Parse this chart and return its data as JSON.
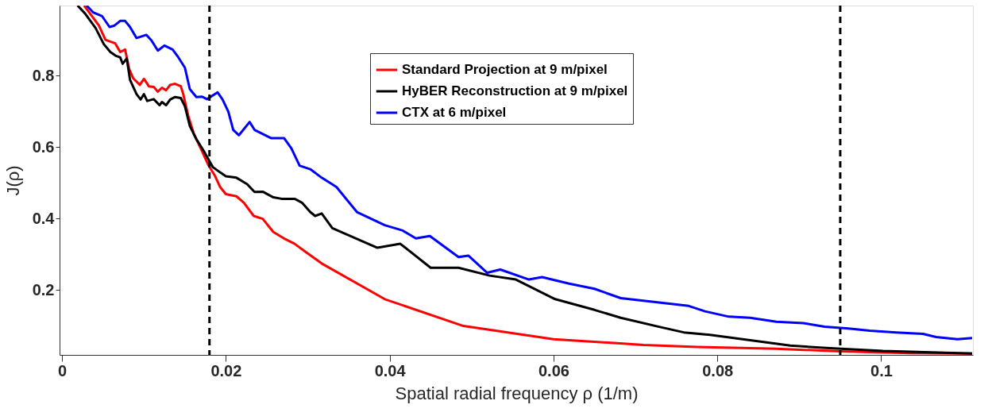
{
  "chart_data": {
    "type": "line",
    "xlabel": "Spatial radial frequency  ρ (1/m)",
    "ylabel": "J(ρ)",
    "xlim": [
      -0.0003,
      0.1112
    ],
    "ylim": [
      0.018,
      0.996
    ],
    "xticks": [
      0,
      0.02,
      0.04,
      0.06,
      0.08,
      0.1
    ],
    "yticks": [
      0.2,
      0.4,
      0.6,
      0.8
    ],
    "grid": false,
    "legend": "top",
    "line_style": "solid",
    "marker": "none",
    "ref_lines": [
      {
        "axis": "x",
        "value": 0.018,
        "color": "#000000",
        "line_style": "dashed"
      },
      {
        "axis": "x",
        "value": 0.095,
        "color": "#000000",
        "line_style": "dashed"
      }
    ],
    "series": [
      {
        "name": "Standard Projection at 9 m/pixel",
        "color": "#ff0000",
        "x": [
          0.0027,
          0.0045,
          0.0053,
          0.0065,
          0.0071,
          0.0077,
          0.0082,
          0.0087,
          0.0095,
          0.01,
          0.0106,
          0.0112,
          0.0117,
          0.0122,
          0.0127,
          0.0132,
          0.0138,
          0.0145,
          0.0148,
          0.0154,
          0.0161,
          0.0171,
          0.0179,
          0.0187,
          0.0193,
          0.02,
          0.0213,
          0.0222,
          0.0234,
          0.0245,
          0.0258,
          0.0271,
          0.0284,
          0.0297,
          0.0317,
          0.0394,
          0.049,
          0.06,
          0.071,
          0.0775,
          0.0872,
          0.095,
          0.1035,
          0.1111
        ],
        "values": [
          0.996,
          0.94,
          0.9,
          0.89,
          0.866,
          0.873,
          0.818,
          0.792,
          0.774,
          0.791,
          0.77,
          0.768,
          0.755,
          0.766,
          0.759,
          0.774,
          0.777,
          0.77,
          0.748,
          0.688,
          0.636,
          0.588,
          0.548,
          0.518,
          0.488,
          0.468,
          0.462,
          0.444,
          0.407,
          0.399,
          0.362,
          0.344,
          0.329,
          0.307,
          0.274,
          0.174,
          0.099,
          0.062,
          0.046,
          0.04,
          0.035,
          0.028,
          0.023,
          0.022
        ]
      },
      {
        "name": "HyBER Reconstruction at 9 m/pixel",
        "color": "#000000",
        "x": [
          0.0019,
          0.0028,
          0.0041,
          0.0051,
          0.0059,
          0.0066,
          0.0071,
          0.0074,
          0.0079,
          0.0083,
          0.0091,
          0.0096,
          0.01,
          0.0104,
          0.0112,
          0.0119,
          0.0122,
          0.0127,
          0.0132,
          0.0138,
          0.0145,
          0.015,
          0.0156,
          0.0164,
          0.0174,
          0.0184,
          0.0193,
          0.02,
          0.0213,
          0.0226,
          0.0235,
          0.0245,
          0.0258,
          0.0268,
          0.0284,
          0.0293,
          0.0303,
          0.0309,
          0.0317,
          0.033,
          0.0385,
          0.0413,
          0.045,
          0.0484,
          0.0522,
          0.0554,
          0.0602,
          0.065,
          0.0682,
          0.073,
          0.0759,
          0.0791,
          0.084,
          0.0889,
          0.0937,
          0.1002,
          0.1111
        ],
        "values": [
          0.996,
          0.974,
          0.933,
          0.888,
          0.866,
          0.855,
          0.851,
          0.833,
          0.848,
          0.788,
          0.748,
          0.733,
          0.748,
          0.729,
          0.734,
          0.717,
          0.726,
          0.717,
          0.733,
          0.74,
          0.737,
          0.714,
          0.659,
          0.622,
          0.585,
          0.544,
          0.529,
          0.518,
          0.514,
          0.496,
          0.474,
          0.475,
          0.459,
          0.455,
          0.455,
          0.444,
          0.418,
          0.407,
          0.414,
          0.373,
          0.318,
          0.329,
          0.262,
          0.262,
          0.24,
          0.229,
          0.174,
          0.144,
          0.122,
          0.096,
          0.081,
          0.074,
          0.059,
          0.044,
          0.037,
          0.029,
          0.022
        ]
      },
      {
        "name": "CTX at 6 m/pixel",
        "color": "#0000ff",
        "x": [
          0.003,
          0.0038,
          0.0049,
          0.0058,
          0.0064,
          0.0071,
          0.0077,
          0.0083,
          0.0091,
          0.0103,
          0.0109,
          0.0117,
          0.0125,
          0.0135,
          0.0142,
          0.015,
          0.0156,
          0.0164,
          0.0171,
          0.0177,
          0.019,
          0.0196,
          0.0203,
          0.0209,
          0.0216,
          0.0229,
          0.0235,
          0.0255,
          0.0271,
          0.028,
          0.029,
          0.0303,
          0.0317,
          0.0335,
          0.036,
          0.0394,
          0.0416,
          0.0432,
          0.0449,
          0.0484,
          0.0496,
          0.0519,
          0.0535,
          0.057,
          0.0586,
          0.0618,
          0.065,
          0.0682,
          0.0765,
          0.0785,
          0.0814,
          0.084,
          0.0872,
          0.0905,
          0.0931,
          0.096,
          0.0986,
          0.1018,
          0.1051,
          0.1067,
          0.1093,
          0.1111
        ],
        "values": [
          0.996,
          0.977,
          0.966,
          0.936,
          0.94,
          0.953,
          0.953,
          0.936,
          0.905,
          0.914,
          0.899,
          0.87,
          0.884,
          0.873,
          0.851,
          0.822,
          0.762,
          0.74,
          0.741,
          0.734,
          0.753,
          0.733,
          0.699,
          0.648,
          0.633,
          0.67,
          0.648,
          0.625,
          0.625,
          0.596,
          0.548,
          0.538,
          0.514,
          0.488,
          0.418,
          0.381,
          0.366,
          0.344,
          0.351,
          0.292,
          0.296,
          0.248,
          0.257,
          0.229,
          0.236,
          0.218,
          0.203,
          0.177,
          0.155,
          0.14,
          0.125,
          0.122,
          0.111,
          0.107,
          0.097,
          0.092,
          0.086,
          0.081,
          0.077,
          0.068,
          0.062,
          0.065
        ]
      }
    ]
  }
}
